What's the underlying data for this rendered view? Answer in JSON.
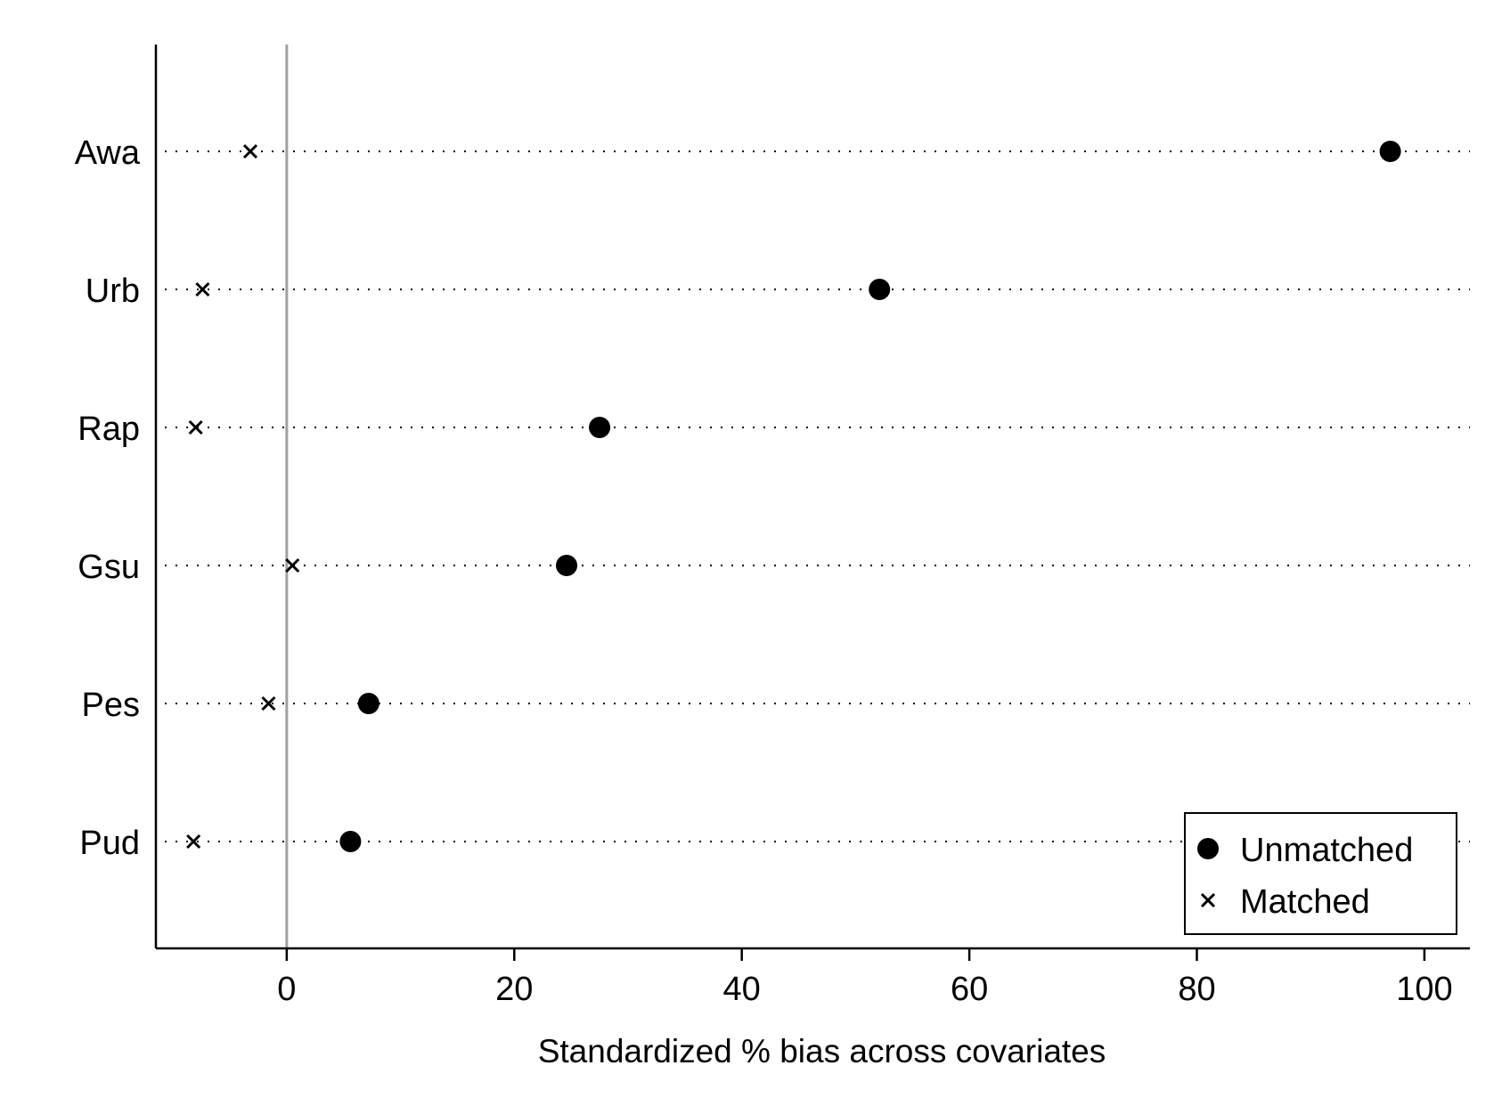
{
  "chart_data": {
    "type": "scatter",
    "title": "",
    "xlabel": "Standardized % bias across covariates",
    "ylabel": "",
    "xlim": [
      -11.5,
      104
    ],
    "x_ticks": [
      0,
      20,
      40,
      60,
      80,
      100
    ],
    "x_tick_labels": [
      "0",
      "20",
      "40",
      "60",
      "80",
      "100"
    ],
    "categories": [
      "Awa",
      "Urb",
      "Rap",
      "Gsu",
      "Pes",
      "Pud"
    ],
    "reference_line_x": 0,
    "grid": "dotted horizontal lines per category",
    "legend_position": "bottom-right",
    "series": [
      {
        "name": "Unmatched",
        "marker": "filled-circle",
        "color": "#000000",
        "values": [
          97.0,
          52.1,
          27.5,
          24.6,
          7.2,
          5.6
        ]
      },
      {
        "name": "Matched",
        "marker": "x",
        "color": "#000000",
        "values": [
          -3.2,
          -7.4,
          -8.0,
          0.5,
          -1.6,
          -8.2
        ]
      }
    ],
    "colors": {
      "reference_line": "#a0a0a0",
      "axis": "#000000"
    }
  }
}
